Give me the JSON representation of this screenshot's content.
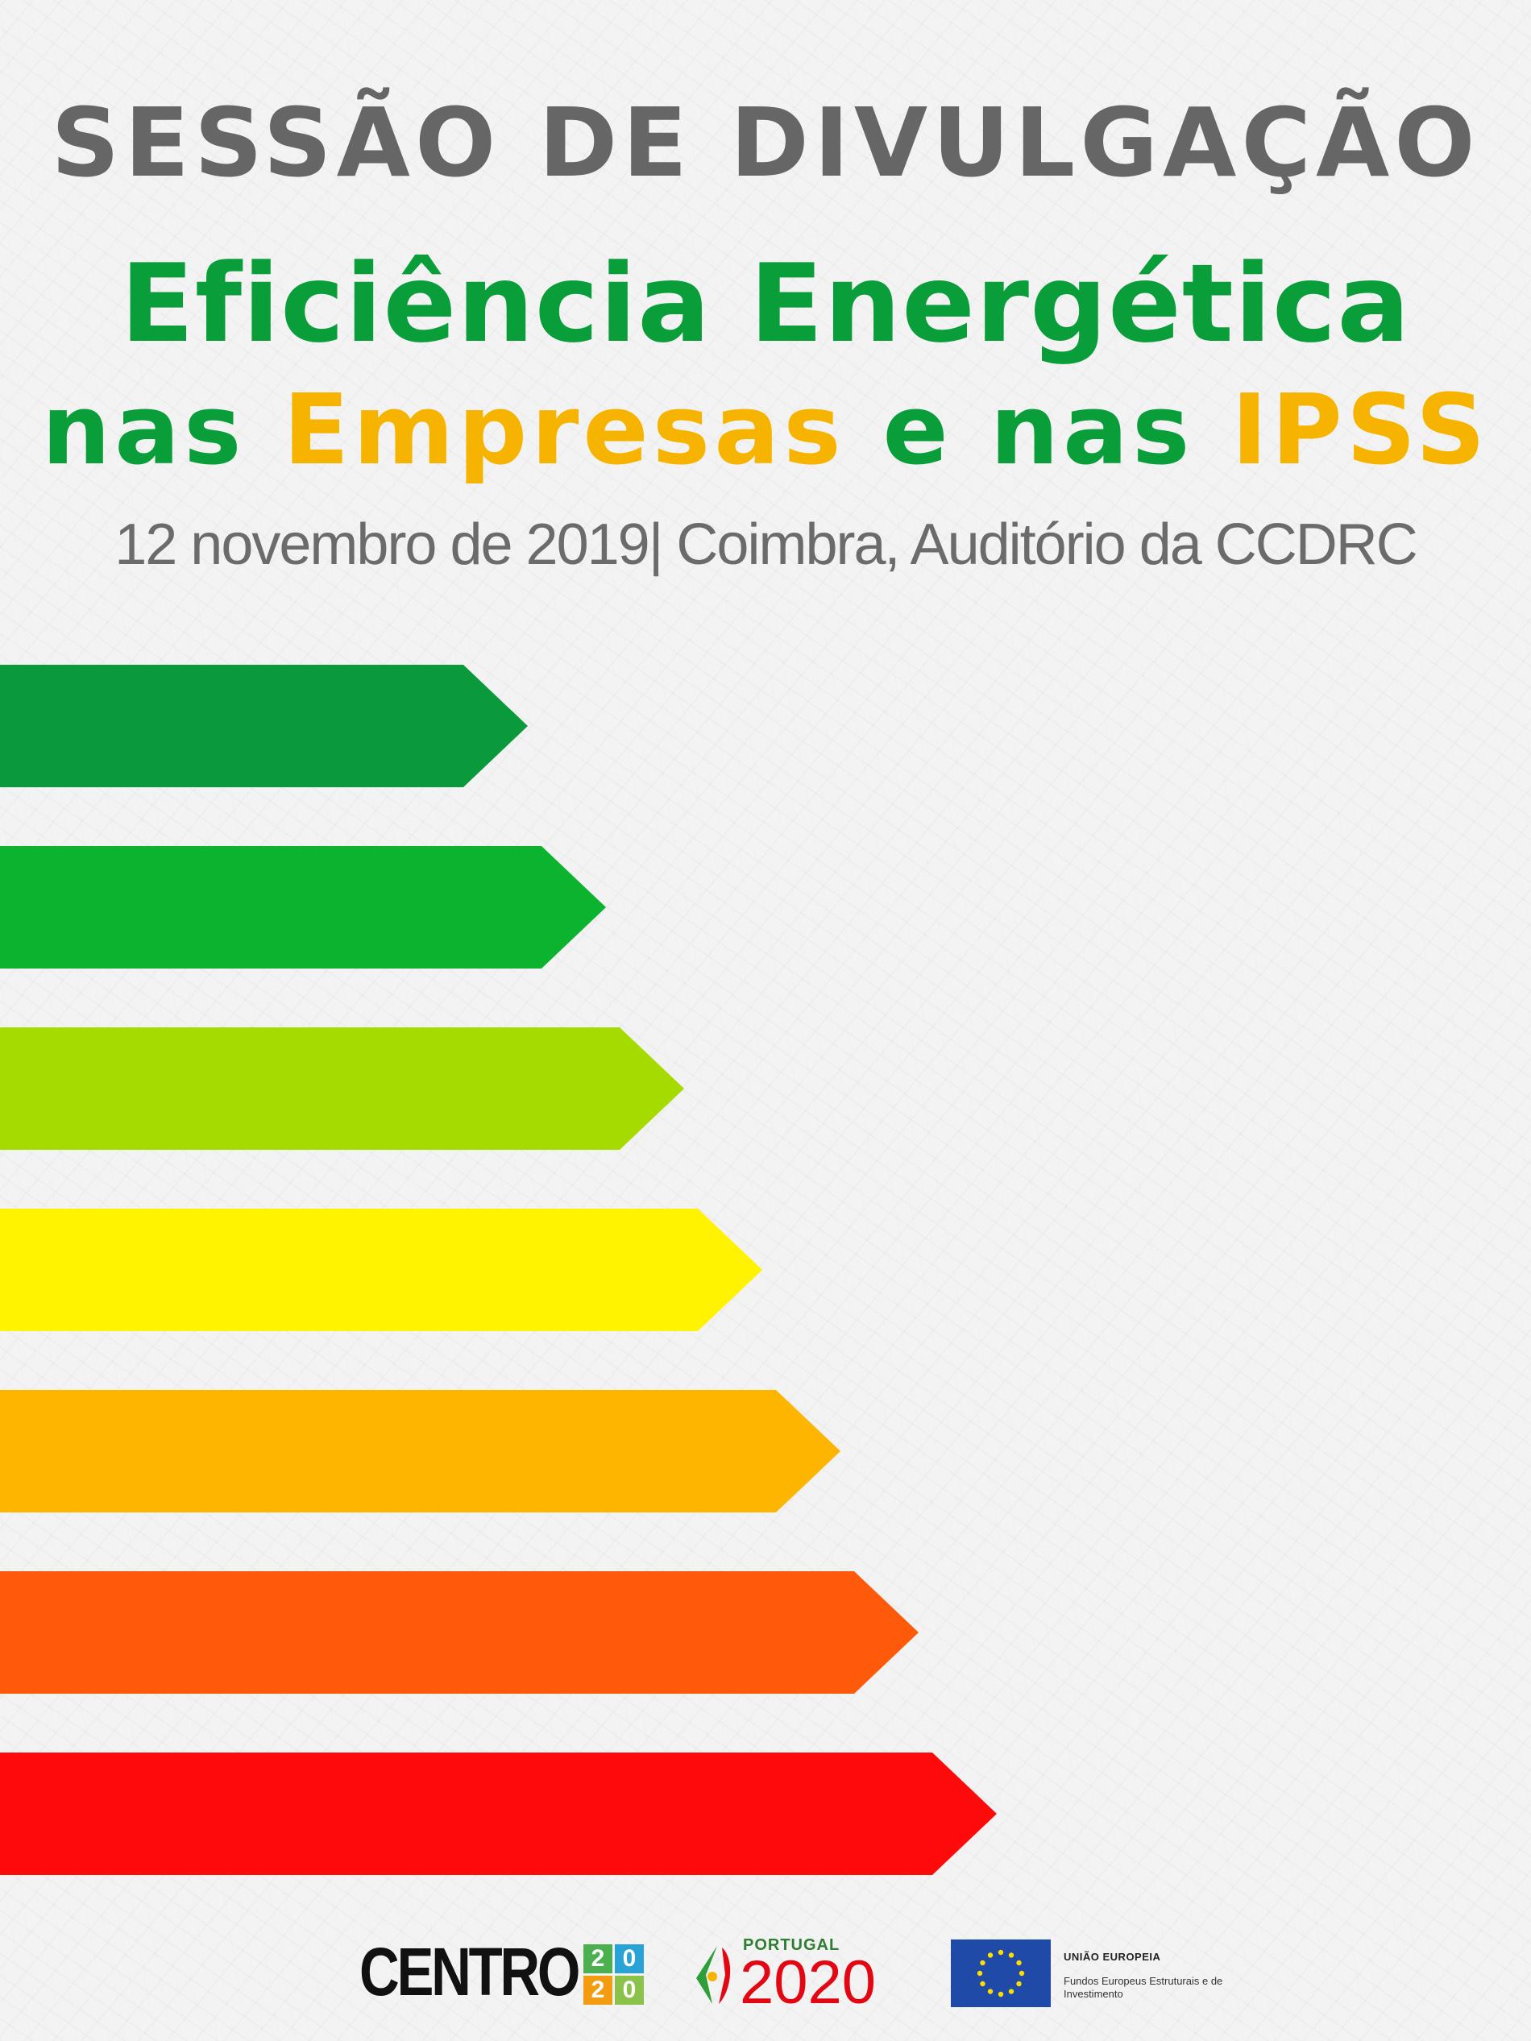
{
  "header": {
    "title": "SESSÃO DE DIVULGAÇÃO",
    "subtitle_line1": "Eficiência Energética",
    "subtitle_line2": {
      "part1": "nas ",
      "part2": "Empresas",
      "part3": " e nas ",
      "part4": "IPSS"
    },
    "date_location": "12 novembro de 2019| Coimbra, Auditório da CCDRC"
  },
  "energy_bars": {
    "colors": [
      "#0a9a3c",
      "#0cb32e",
      "#a6db00",
      "#fff300",
      "#fdb500",
      "#ff5a0a",
      "#ff0a0a"
    ]
  },
  "logos": {
    "centro": "CENTRO",
    "centro_digits": [
      "2",
      "0",
      "2",
      "0"
    ],
    "centro_digit_colors": [
      "#4caf50",
      "#29a3d6",
      "#f39c12",
      "#8bc34a"
    ],
    "portugal_small": "PORTUGAL",
    "portugal_year": "2020",
    "eu_title": "UNIÃO EUROPEIA",
    "eu_subtitle": "Fundos Europeus Estruturais e de Investimento"
  }
}
